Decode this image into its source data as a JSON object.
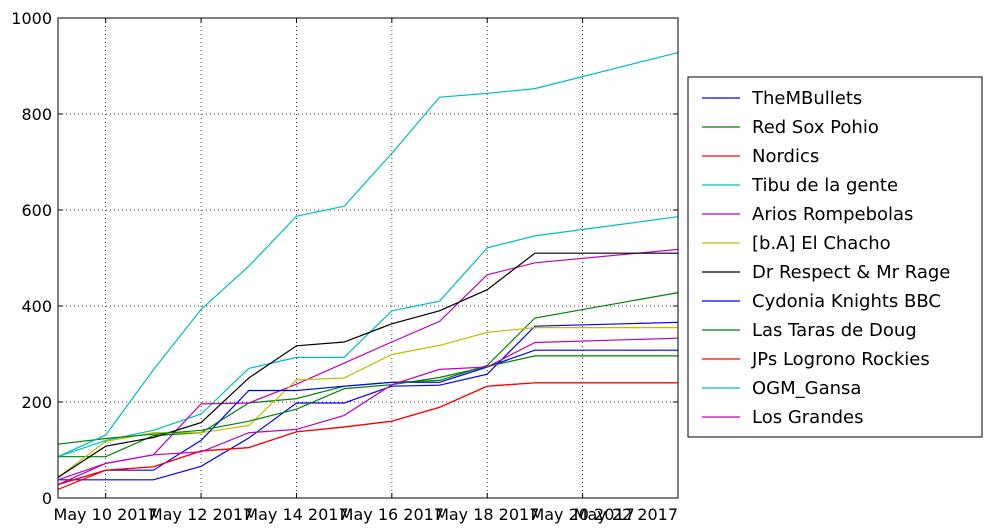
{
  "chart_data": {
    "type": "line",
    "title": "",
    "xlabel": "",
    "ylabel": "",
    "grid": true,
    "legend_position": "right",
    "xlim": [
      9,
      22
    ],
    "ylim": [
      0,
      1000
    ],
    "x_ticks": [
      10,
      12,
      14,
      16,
      18,
      20,
      22
    ],
    "x_tick_labels": [
      "May 10 2017",
      "May 12 2017",
      "May 14 2017",
      "May 16 2017",
      "May 18 2017",
      "May 20 2017",
      "May 22 2017"
    ],
    "y_ticks": [
      0,
      200,
      400,
      600,
      800,
      1000
    ],
    "y_tick_labels": [
      "0",
      "200",
      "400",
      "600",
      "800",
      "1000"
    ],
    "x": [
      9,
      10,
      11,
      12,
      13,
      14,
      15,
      16,
      17,
      18,
      19,
      22
    ],
    "series": [
      {
        "name": "TheMBullets",
        "color": "#0000ff",
        "values": [
          38,
          38,
          38,
          66,
          125,
          198,
          198,
          233,
          235,
          258,
          358,
          366
        ]
      },
      {
        "name": "Red Sox Pohio",
        "color": "#008000",
        "values": [
          86,
          86,
          130,
          136,
          198,
          207,
          233,
          241,
          245,
          276,
          375,
          428
        ]
      },
      {
        "name": "Nordics",
        "color": "#ff0000",
        "values": [
          18,
          58,
          65,
          98,
          105,
          138,
          148,
          160,
          189,
          233,
          240,
          240
        ]
      },
      {
        "name": "Tibu de la gente",
        "color": "#00bfbf",
        "values": [
          86,
          120,
          141,
          175,
          270,
          293,
          293,
          390,
          410,
          521,
          546,
          586
        ]
      },
      {
        "name": "Arios Rompebolas",
        "color": "#bf00bf",
        "values": [
          28,
          72,
          90,
          196,
          198,
          237,
          281,
          325,
          368,
          465,
          490,
          518
        ]
      },
      {
        "name": "[b.A] El Chacho",
        "color": "#bfbf00",
        "values": [
          43,
          118,
          136,
          136,
          151,
          246,
          250,
          299,
          318,
          345,
          355,
          355
        ]
      },
      {
        "name": "Dr Respect & Mr Rage",
        "color": "#000000",
        "values": [
          43,
          108,
          126,
          157,
          250,
          317,
          325,
          363,
          390,
          434,
          510,
          510
        ]
      },
      {
        "name": "Cydonia Knights BBC",
        "color": "#0000ff",
        "values": [
          28,
          58,
          58,
          120,
          224,
          224,
          233,
          241,
          241,
          273,
          308,
          308
        ]
      },
      {
        "name": "Las Taras de Doug",
        "color": "#008000",
        "values": [
          112,
          124,
          133,
          141,
          160,
          185,
          228,
          236,
          251,
          274,
          296,
          296
        ]
      },
      {
        "name": "JPs Logrono Rockies",
        "color": "#ff0000",
        "values": [
          28,
          58,
          65,
          98,
          105,
          138,
          148,
          160,
          189,
          233,
          240,
          240
        ]
      },
      {
        "name": "OGM_Gansa",
        "color": "#00bfbf",
        "values": [
          86,
          131,
          267,
          393,
          483,
          587,
          608,
          718,
          835,
          843,
          853,
          928
        ]
      },
      {
        "name": "Los Grandes",
        "color": "#bf00bf",
        "values": [
          38,
          72,
          90,
          96,
          136,
          143,
          172,
          236,
          268,
          273,
          324,
          333
        ]
      }
    ]
  }
}
